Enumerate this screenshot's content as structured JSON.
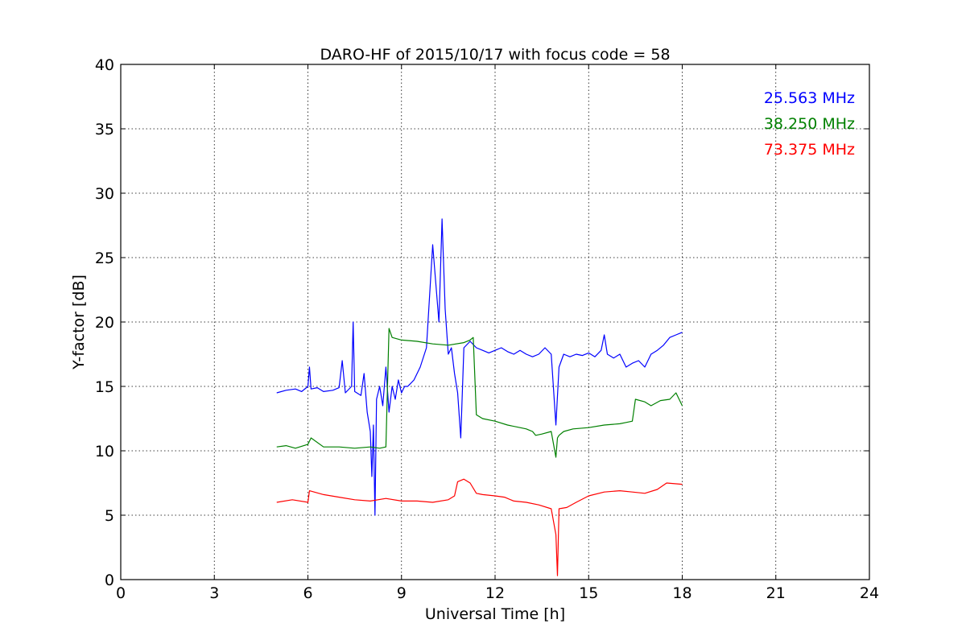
{
  "chart_data": {
    "type": "line",
    "title": "DARO-HF of 2015/10/17 with focus code = 58",
    "xlabel": "Universal Time [h]",
    "ylabel": "Y-factor [dB]",
    "xlim": [
      0,
      24
    ],
    "ylim": [
      0,
      40
    ],
    "xticks": [
      0,
      3,
      6,
      9,
      12,
      15,
      18,
      21,
      24
    ],
    "yticks": [
      0,
      5,
      10,
      15,
      20,
      25,
      30,
      35,
      40
    ],
    "grid": true,
    "legend_position": "top-right",
    "series": [
      {
        "name": "25.563 MHz",
        "color": "#0000ff",
        "x": [
          5.0,
          5.3,
          5.6,
          5.8,
          6.0,
          6.05,
          6.1,
          6.3,
          6.5,
          6.8,
          7.0,
          7.1,
          7.2,
          7.4,
          7.45,
          7.5,
          7.7,
          7.8,
          7.9,
          8.0,
          8.05,
          8.1,
          8.15,
          8.2,
          8.3,
          8.4,
          8.5,
          8.6,
          8.7,
          8.8,
          8.9,
          9.0,
          9.1,
          9.2,
          9.4,
          9.6,
          9.8,
          9.9,
          10.0,
          10.1,
          10.2,
          10.3,
          10.4,
          10.5,
          10.6,
          10.7,
          10.8,
          10.9,
          11.0,
          11.2,
          11.4,
          11.6,
          11.8,
          12.0,
          12.2,
          12.4,
          12.6,
          12.8,
          13.0,
          13.2,
          13.4,
          13.6,
          13.8,
          13.95,
          14.05,
          14.2,
          14.4,
          14.6,
          14.8,
          15.0,
          15.2,
          15.4,
          15.5,
          15.6,
          15.8,
          16.0,
          16.2,
          16.4,
          16.6,
          16.8,
          17.0,
          17.2,
          17.4,
          17.6,
          17.8,
          18.0
        ],
        "values": [
          14.5,
          14.7,
          14.8,
          14.6,
          15.0,
          16.5,
          14.8,
          14.9,
          14.6,
          14.7,
          14.9,
          17.0,
          14.5,
          15.0,
          20.0,
          14.6,
          14.3,
          16.0,
          13.0,
          11.5,
          8.0,
          12.0,
          5.0,
          14.0,
          15.0,
          13.5,
          16.5,
          13.0,
          15.0,
          14.0,
          15.5,
          14.5,
          15.0,
          15.0,
          15.5,
          16.5,
          18.0,
          22.0,
          26.0,
          23.0,
          20.0,
          28.0,
          21.0,
          17.5,
          18.0,
          16.0,
          14.5,
          11.0,
          18.0,
          18.5,
          18.0,
          17.8,
          17.6,
          17.8,
          18.0,
          17.7,
          17.5,
          17.8,
          17.5,
          17.3,
          17.5,
          18.0,
          17.5,
          12.0,
          16.5,
          17.5,
          17.3,
          17.5,
          17.4,
          17.6,
          17.3,
          17.8,
          19.0,
          17.5,
          17.2,
          17.5,
          16.5,
          16.8,
          17.0,
          16.5,
          17.5,
          17.8,
          18.2,
          18.8,
          19.0,
          19.2
        ]
      },
      {
        "name": "38.250 MHz",
        "color": "#008000",
        "x": [
          5.0,
          5.3,
          5.6,
          6.0,
          6.1,
          6.5,
          7.0,
          7.5,
          8.0,
          8.3,
          8.5,
          8.6,
          8.7,
          9.0,
          9.5,
          10.0,
          10.5,
          11.0,
          11.2,
          11.3,
          11.4,
          11.6,
          12.0,
          12.4,
          12.8,
          13.0,
          13.1,
          13.2,
          13.3,
          13.5,
          13.8,
          13.95,
          14.0,
          14.05,
          14.2,
          14.5,
          15.0,
          15.5,
          16.0,
          16.2,
          16.4,
          16.5,
          16.8,
          17.0,
          17.3,
          17.6,
          17.8,
          18.0
        ],
        "values": [
          10.3,
          10.4,
          10.2,
          10.5,
          11.0,
          10.3,
          10.3,
          10.2,
          10.3,
          10.2,
          10.3,
          19.5,
          18.8,
          18.6,
          18.5,
          18.3,
          18.2,
          18.4,
          18.6,
          18.8,
          12.8,
          12.5,
          12.3,
          12.0,
          11.8,
          11.7,
          11.6,
          11.5,
          11.2,
          11.3,
          11.5,
          9.5,
          11.0,
          11.2,
          11.5,
          11.7,
          11.8,
          12.0,
          12.1,
          12.2,
          12.3,
          14.0,
          13.8,
          13.5,
          13.9,
          14.0,
          14.5,
          13.5
        ]
      },
      {
        "name": "73.375 MHz",
        "color": "#ff0000",
        "x": [
          5.0,
          5.5,
          6.0,
          6.05,
          6.5,
          7.0,
          7.5,
          8.0,
          8.5,
          9.0,
          9.5,
          10.0,
          10.5,
          10.7,
          10.8,
          11.0,
          11.2,
          11.4,
          11.6,
          12.0,
          12.3,
          12.6,
          13.0,
          13.4,
          13.8,
          13.95,
          14.0,
          14.05,
          14.3,
          14.6,
          15.0,
          15.5,
          16.0,
          16.4,
          16.8,
          17.2,
          17.5,
          18.0
        ],
        "values": [
          6.0,
          6.2,
          6.0,
          6.9,
          6.6,
          6.4,
          6.2,
          6.1,
          6.3,
          6.1,
          6.1,
          6.0,
          6.2,
          6.5,
          7.6,
          7.8,
          7.5,
          6.7,
          6.6,
          6.5,
          6.4,
          6.1,
          6.0,
          5.8,
          5.5,
          3.5,
          0.3,
          5.5,
          5.6,
          6.0,
          6.5,
          6.8,
          6.9,
          6.8,
          6.7,
          7.0,
          7.5,
          7.4
        ]
      }
    ]
  }
}
